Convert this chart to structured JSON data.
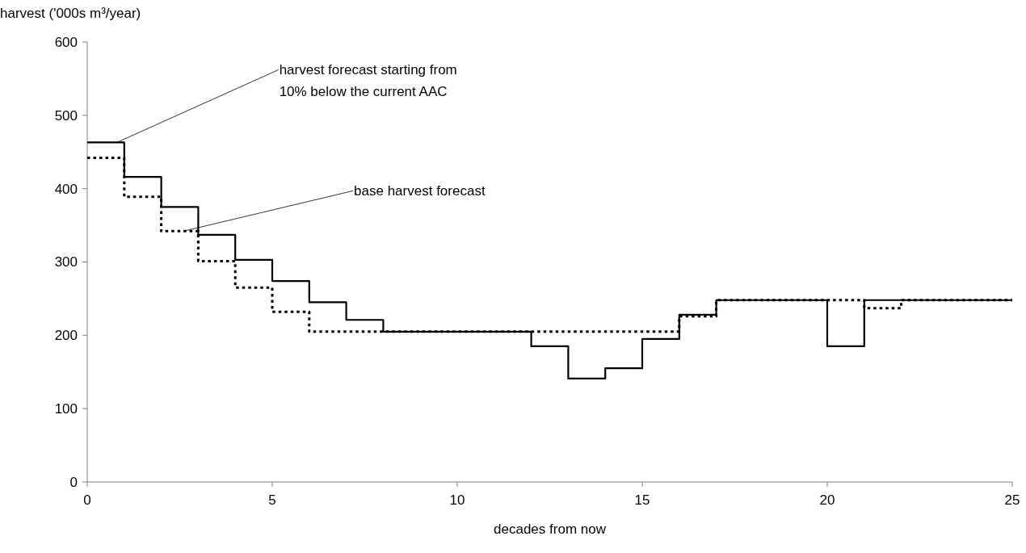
{
  "chart_data": {
    "type": "step",
    "xlabel": "decades from now",
    "ylabel": "harvest ('000s m³/year)",
    "x": [
      0,
      1,
      2,
      3,
      4,
      5,
      6,
      7,
      8,
      9,
      10,
      11,
      12,
      13,
      14,
      15,
      16,
      17,
      18,
      19,
      20,
      21,
      22,
      23,
      24,
      25
    ],
    "series": [
      {
        "color": "#000000",
        "line_style": "solid",
        "values": [
          463,
          416,
          375,
          337,
          303,
          274,
          245,
          221,
          205,
          205,
          205,
          205,
          185,
          141,
          155,
          195,
          228,
          248,
          248,
          248,
          185,
          248,
          248,
          248,
          248,
          248
        ]
      },
      {
        "color": "#000000",
        "line_style": "dotted",
        "values": [
          442,
          389,
          342,
          301,
          265,
          232,
          205,
          205,
          205,
          205,
          205,
          205,
          205,
          205,
          205,
          205,
          226,
          248,
          248,
          248,
          248,
          237,
          248,
          248,
          248,
          248
        ]
      }
    ],
    "xlim": [
      0,
      25
    ],
    "xticks": [
      0,
      5,
      10,
      15,
      20,
      25
    ],
    "ylim": [
      0,
      600
    ],
    "yticks": [
      0,
      100,
      200,
      300,
      400,
      500,
      600
    ],
    "grid": false,
    "annotations": [
      {
        "text": "harvest forecast starting from\n10% below the current AAC",
        "x": 0.8,
        "y": 463
      },
      {
        "text": "base harvest forecast",
        "x": 2.6,
        "y": 342
      }
    ]
  }
}
